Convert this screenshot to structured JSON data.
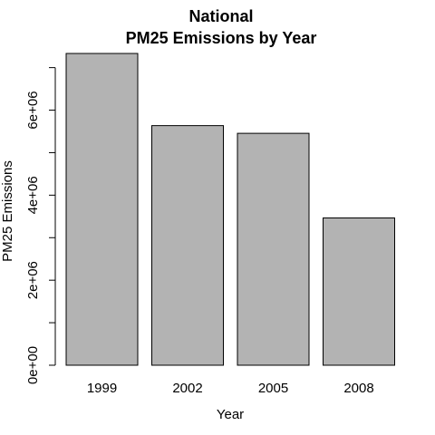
{
  "chart_data": {
    "type": "bar",
    "title_line1": "National",
    "title_line2": "PM25 Emissions by Year",
    "xlabel": "Year",
    "ylabel": "PM25 Emissions",
    "categories": [
      "1999",
      "2002",
      "2005",
      "2008"
    ],
    "values": [
      7332967,
      5635780,
      5454703,
      3464206
    ],
    "ylim": [
      0,
      7332967
    ],
    "yticks": [
      {
        "value": 0,
        "label": "0e+00"
      },
      {
        "value": 1000000,
        "label": ""
      },
      {
        "value": 2000000,
        "label": "2e+06"
      },
      {
        "value": 3000000,
        "label": ""
      },
      {
        "value": 4000000,
        "label": "4e+06"
      },
      {
        "value": 5000000,
        "label": ""
      },
      {
        "value": 6000000,
        "label": "6e+06"
      },
      {
        "value": 7000000,
        "label": ""
      }
    ],
    "bar_color": "#b3b3b3",
    "border_color": "#000000",
    "grid": false
  }
}
